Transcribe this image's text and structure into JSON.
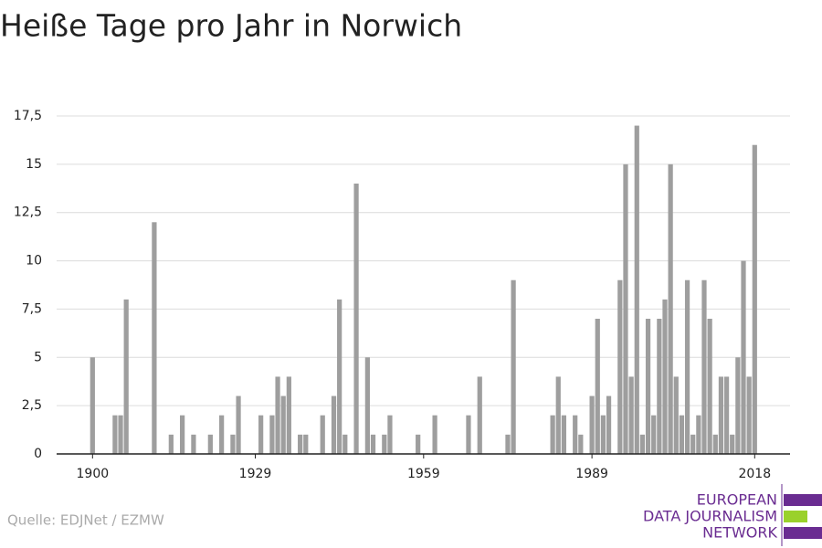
{
  "chart_data": {
    "type": "bar",
    "title": "Heiße Tage pro Jahr in Norwich",
    "source": "Quelle: EDJNet / EZMW",
    "logo": [
      "EUROPEAN",
      "DATA JOURNALISM",
      "NETWORK"
    ],
    "color": "#9e9e9e",
    "x": [
      1900,
      1904,
      1905,
      1906,
      1911,
      1914,
      1916,
      1918,
      1921,
      1923,
      1925,
      1926,
      1930,
      1932,
      1933,
      1934,
      1935,
      1937,
      1938,
      1941,
      1943,
      1944,
      1945,
      1947,
      1949,
      1950,
      1952,
      1953,
      1958,
      1961,
      1967,
      1969,
      1974,
      1975,
      1982,
      1983,
      1984,
      1986,
      1987,
      1989,
      1990,
      1991,
      1992,
      1994,
      1995,
      1996,
      1997,
      1998,
      1999,
      2000,
      2001,
      2002,
      2003,
      2004,
      2005,
      2006,
      2007,
      2008,
      2009,
      2010,
      2011,
      2012,
      2013,
      2014,
      2015,
      2016,
      2017,
      2018
    ],
    "values": [
      5,
      2,
      2,
      8,
      12,
      1,
      2,
      1,
      1,
      2,
      1,
      3,
      2,
      2,
      4,
      3,
      4,
      1,
      1,
      2,
      3,
      8,
      1,
      14,
      5,
      1,
      1,
      2,
      1,
      2,
      2,
      4,
      1,
      9,
      2,
      4,
      2,
      2,
      1,
      3,
      7,
      2,
      3,
      9,
      15,
      4,
      17,
      1,
      7,
      2,
      7,
      8,
      15,
      4,
      2,
      9,
      1,
      2,
      9,
      7,
      1,
      4,
      4,
      1,
      5,
      10,
      4,
      16
    ],
    "xlim": [
      1893.6,
      2024.3
    ],
    "xticks": [
      1900,
      1929,
      1959,
      1989,
      2018
    ],
    "ylim": [
      0,
      17.5
    ],
    "yticks": [
      0,
      {
        "value": 2.5,
        "label": "2,5"
      },
      5,
      {
        "value": 7.5,
        "label": "7,5"
      },
      10,
      {
        "value": 12.5,
        "label": "12,5"
      },
      15,
      {
        "value": 17.5,
        "label": "17,5"
      }
    ],
    "grid": true
  }
}
